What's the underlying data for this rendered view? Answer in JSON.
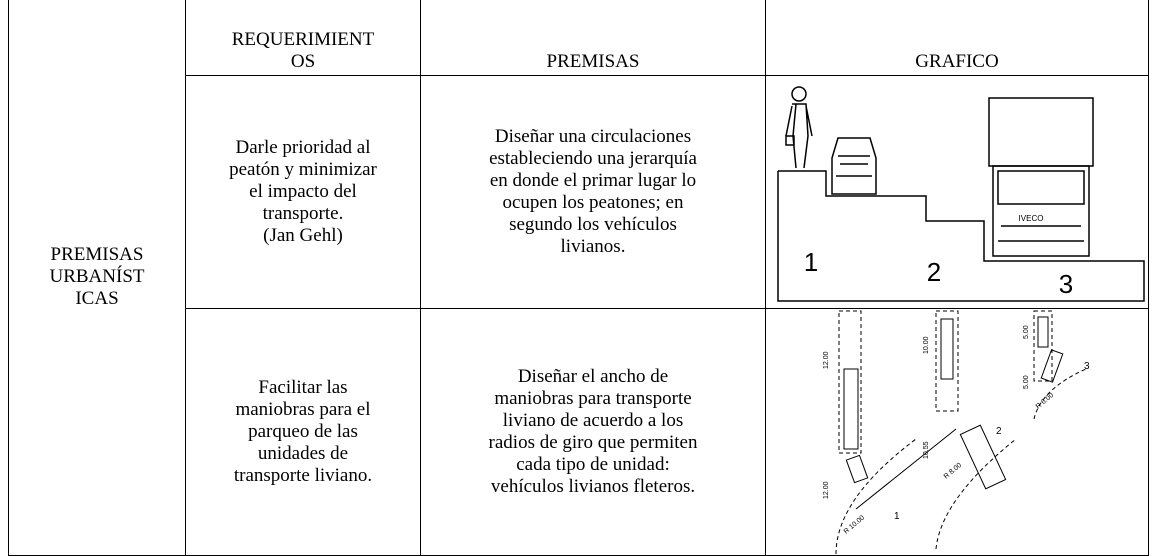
{
  "table": {
    "header": [
      [],
      [
        "REQUERIMIENT",
        "OS"
      ],
      [
        "PREMISAS"
      ],
      [
        "GRAFICO"
      ]
    ],
    "group_label": [
      "PREMISAS",
      "URBANÍST",
      "ICAS"
    ],
    "rows": [
      [
        [
          "Darle prioridad al",
          "peatón y minimizar",
          "el impacto del",
          "transporte.",
          "(Jan Gehl)"
        ],
        [
          "Diseñar una circulaciones",
          "estableciendo una jerarquía",
          "en donde el primar lugar lo",
          "ocupen los peatones; en",
          "segundo los vehículos",
          "livianos."
        ]
      ],
      [
        [
          "Facilitar las",
          "maniobras para el",
          "parqueo de las",
          "unidades de",
          "transporte liviano."
        ],
        [
          "Diseñar el ancho de",
          "maniobras para transporte",
          "liviano de acuerdo a los",
          "radios de giro que permiten",
          "cada tipo de unidad:",
          "vehículos livianos fleteros."
        ]
      ]
    ]
  },
  "graphics": {
    "levels": {
      "labels": [
        "1",
        "2",
        "3"
      ],
      "truck_brand": "IVECO"
    },
    "parking": {
      "labels": [
        "1",
        "2",
        "3"
      ],
      "dimensions": [
        "12.00",
        "12.00",
        "10.00",
        "10.55",
        "5.00",
        "5.00"
      ],
      "radii": [
        "R 10.00",
        "R 8.00",
        "R 6.00"
      ]
    }
  }
}
